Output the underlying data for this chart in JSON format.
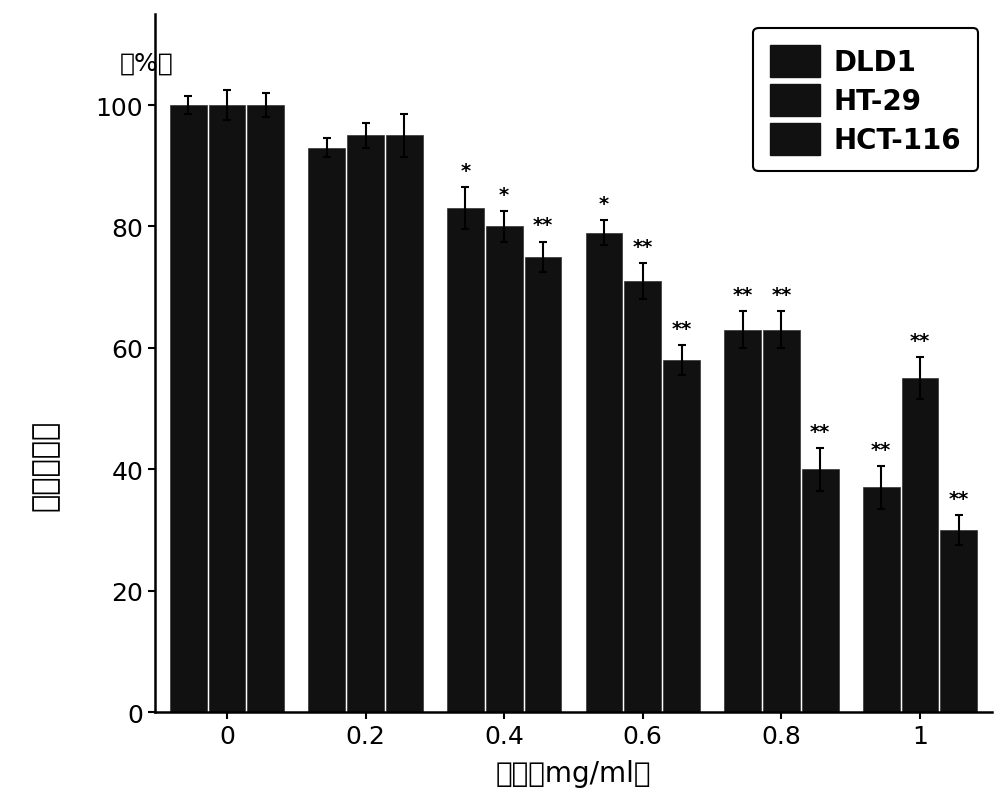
{
  "concentrations": [
    0,
    0.2,
    0.4,
    0.6,
    0.8,
    1.0
  ],
  "x_labels": [
    "0",
    "0．2",
    "0．4",
    "0．6",
    "0．8",
    "1"
  ],
  "series": {
    "DLD1": [
      100,
      93,
      83,
      79,
      63,
      37
    ],
    "HT-29": [
      100,
      95,
      80,
      71,
      63,
      55
    ],
    "HCT-116": [
      100,
      95,
      75,
      58,
      40,
      30
    ]
  },
  "errors": {
    "DLD1": [
      1.5,
      1.5,
      3.5,
      2.0,
      3.0,
      3.5
    ],
    "HT-29": [
      2.5,
      2.0,
      2.5,
      3.0,
      3.0,
      3.5
    ],
    "HCT-116": [
      2.0,
      3.5,
      2.5,
      2.5,
      3.5,
      2.5
    ]
  },
  "significance": {
    "DLD1": [
      "",
      "",
      "*",
      "*",
      "**",
      "**"
    ],
    "HT-29": [
      "",
      "",
      "*",
      "**",
      "**",
      "**"
    ],
    "HCT-116": [
      "",
      "",
      "**",
      "**",
      "**",
      "**"
    ]
  },
  "bar_color": "#111111",
  "bar_width": 0.28,
  "ylabel_chinese": "细胞存活率",
  "ylabel_pct": "（%）",
  "xlabel": "浓度（mg/ml）",
  "ylim": [
    0,
    115
  ],
  "yticks": [
    0,
    20,
    40,
    60,
    80,
    100
  ],
  "legend_labels": [
    "DLD1",
    "HT-29",
    "HCT-116"
  ],
  "background_color": "#ffffff",
  "axis_fontsize": 20,
  "tick_fontsize": 18,
  "legend_fontsize": 20,
  "sig_fontsize": 14,
  "ylabel_fontsize": 22,
  "pct_fontsize": 18
}
